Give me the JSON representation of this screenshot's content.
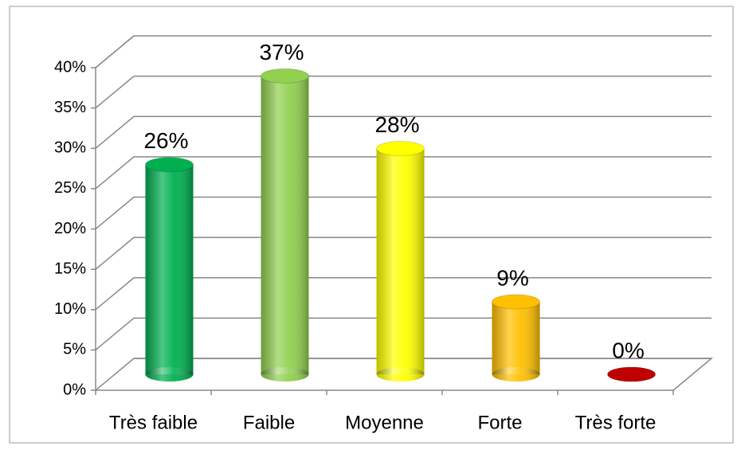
{
  "chart_data": {
    "type": "bar",
    "categories": [
      "Très faible",
      "Faible",
      "Moyenne",
      "Forte",
      "Très forte"
    ],
    "values": [
      26,
      37,
      28,
      9,
      0
    ],
    "value_labels": [
      "26%",
      "37%",
      "28%",
      "9%",
      "0%"
    ],
    "colors": [
      "#00b050",
      "#92d050",
      "#ffff00",
      "#ffc000",
      "#c00000"
    ],
    "ylim": [
      0,
      40
    ],
    "yticks": [
      {
        "value": 0,
        "label": "0%"
      },
      {
        "value": 5,
        "label": "5%"
      },
      {
        "value": 10,
        "label": "10%"
      },
      {
        "value": 15,
        "label": "15%"
      },
      {
        "value": 20,
        "label": "20%"
      },
      {
        "value": 25,
        "label": "25%"
      },
      {
        "value": 30,
        "label": "30%"
      },
      {
        "value": 35,
        "label": "35%"
      },
      {
        "value": 40,
        "label": "40%"
      }
    ],
    "grid": true
  }
}
